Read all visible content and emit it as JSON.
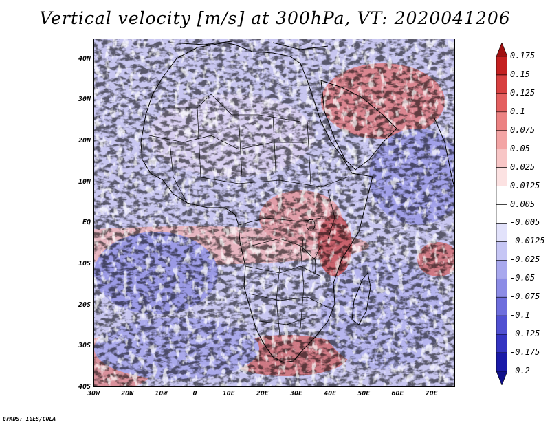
{
  "title": "Vertical velocity [m/s] at 300hPa, VT: 2020041206",
  "footer": "GrADS: IGES/COLA",
  "map": {
    "lat_range": [
      -40,
      45
    ],
    "lon_range": [
      -30,
      77
    ],
    "lat_ticks": [
      "40N",
      "30N",
      "20N",
      "10N",
      "EQ",
      "10S",
      "20S",
      "30S",
      "40S"
    ],
    "lon_ticks": [
      "30W",
      "20W",
      "10W",
      "0",
      "10E",
      "20E",
      "30E",
      "40E",
      "50E",
      "60E",
      "70E"
    ],
    "features": [
      "coastlines",
      "country-borders",
      "vertical-velocity-field"
    ]
  },
  "colorbar": {
    "labels": [
      "0.175",
      "0.15",
      "0.125",
      "0.1",
      "0.075",
      "0.05",
      "0.025",
      "0.0125",
      "0.005",
      "-0.005",
      "-0.0125",
      "-0.025",
      "-0.05",
      "-0.075",
      "-0.1",
      "-0.125",
      "-0.175",
      "-0.2"
    ],
    "colors": [
      "#a01010",
      "#c42020",
      "#d84040",
      "#e46060",
      "#ec8282",
      "#f3a4a4",
      "#f8c6c6",
      "#fce2e2",
      "#ffffff",
      "#ffffff",
      "#e2e2fb",
      "#c6c6f5",
      "#a8a8ee",
      "#8c8ce6",
      "#6e6edd",
      "#5050d2",
      "#3434c2",
      "#1a1aa8",
      "#10108a"
    ]
  },
  "colors": {
    "positive": "#c83030",
    "negative": "#3a3ad0",
    "neutral": "#ffffff"
  }
}
